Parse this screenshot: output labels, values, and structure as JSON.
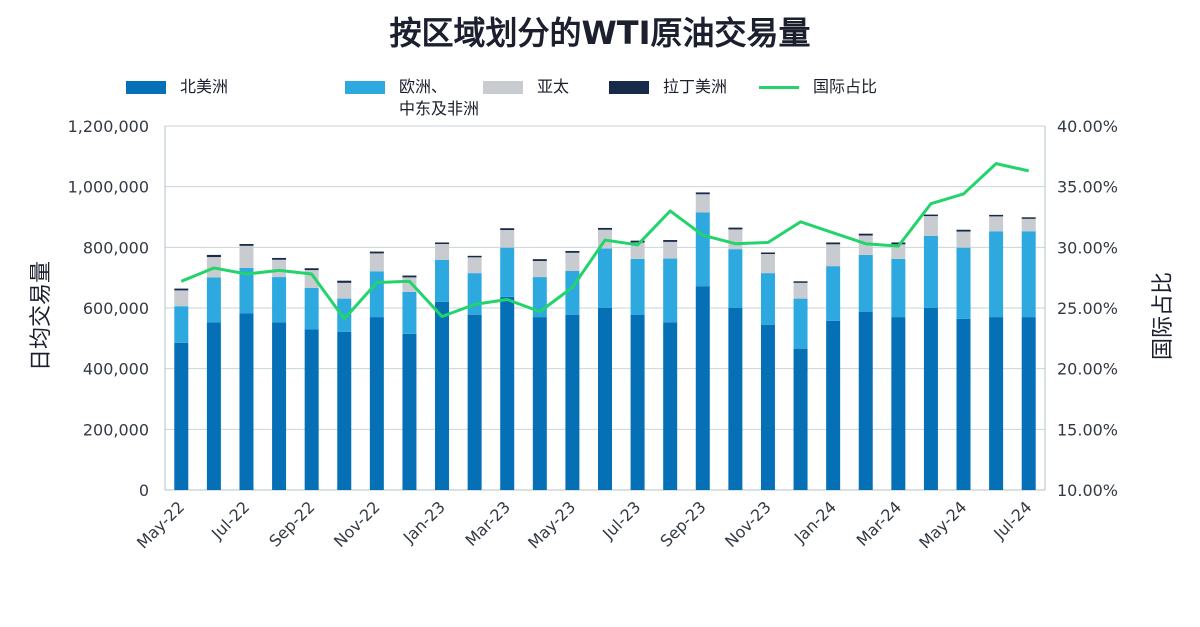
{
  "title": "按区域划分的WTI原油交易量",
  "legend": [
    {
      "label": "北美洲",
      "type": "bar",
      "color": "#0570b6"
    },
    {
      "label": "欧洲、\n中东及非洲",
      "type": "bar",
      "color": "#2ea9e0"
    },
    {
      "label": "亚太",
      "type": "bar",
      "color": "#c8ccd0"
    },
    {
      "label": "拉丁美洲",
      "type": "bar",
      "color": "#182a4a"
    },
    {
      "label": "国际占比",
      "type": "line",
      "color": "#22d46b"
    }
  ],
  "chart_data": {
    "type": "bar",
    "stacked": true,
    "title": "按区域划分的WTI原油交易量",
    "ylabel": "日均交易量",
    "y2label": "国际占比",
    "ylim": [
      0,
      1200000
    ],
    "y2lim": [
      0.1,
      0.4
    ],
    "yticks": [
      "0",
      "200,000",
      "400,000",
      "600,000",
      "800,000",
      "1,000,000",
      "1,200,000"
    ],
    "y2ticks": [
      "10.00%",
      "15.00%",
      "20.00%",
      "25.00%",
      "30.00%",
      "35.00%",
      "40.00%"
    ],
    "categories": [
      "May-22",
      "Jun-22",
      "Jul-22",
      "Aug-22",
      "Sep-22",
      "Oct-22",
      "Nov-22",
      "Dec-22",
      "Jan-23",
      "Feb-23",
      "Mar-23",
      "Apr-23",
      "May-23",
      "Jun-23",
      "Jul-23",
      "Aug-23",
      "Sep-23",
      "Oct-23",
      "Nov-23",
      "Dec-23",
      "Jan-24",
      "Feb-24",
      "Mar-24",
      "Apr-24",
      "May-24",
      "Jun-24",
      "Jul-24"
    ],
    "xtick_labels": [
      "May-22",
      "Jul-22",
      "Sep-22",
      "Nov-22",
      "Jan-23",
      "Mar-23",
      "May-23",
      "Jul-23",
      "Sep-23",
      "Nov-23",
      "Jan-24",
      "Mar-24",
      "May-24",
      "Jul-24"
    ],
    "grid": true,
    "legend_position": "top",
    "series": [
      {
        "name": "北美洲",
        "color": "#0570b6",
        "values": [
          485000,
          553000,
          582000,
          553000,
          529000,
          521000,
          570000,
          515000,
          620000,
          578000,
          637000,
          570000,
          578000,
          600000,
          577000,
          553000,
          672000,
          600000,
          545000,
          466000,
          558000,
          588000,
          570000,
          600000,
          564000,
          570000,
          570000
        ]
      },
      {
        "name": "欧洲、\n中东及非洲",
        "color": "#2ea9e0",
        "values": [
          121000,
          148000,
          150000,
          149000,
          137000,
          110000,
          151000,
          138000,
          139000,
          137000,
          162000,
          132000,
          144000,
          196000,
          185000,
          210000,
          243000,
          194000,
          170000,
          165000,
          180000,
          187000,
          192000,
          238000,
          235000,
          283000,
          283000
        ]
      },
      {
        "name": "亚太",
        "color": "#c8ccd0",
        "values": [
          52000,
          67000,
          73000,
          57000,
          59000,
          52000,
          59000,
          48000,
          52000,
          52000,
          58000,
          53000,
          60000,
          62000,
          54000,
          55000,
          60000,
          65000,
          63000,
          52000,
          72000,
          64000,
          48000,
          65000,
          53000,
          49000,
          41000
        ]
      },
      {
        "name": "拉丁美洲",
        "color": "#182a4a",
        "values": [
          6000,
          7000,
          6000,
          6000,
          6000,
          7000,
          6000,
          6000,
          5000,
          5000,
          6000,
          6000,
          6000,
          6000,
          6000,
          6000,
          6000,
          6000,
          5000,
          5000,
          6000,
          6000,
          6000,
          5000,
          6000,
          5000,
          5000
        ]
      },
      {
        "name": "国际占比",
        "type": "line",
        "axis": "right",
        "color": "#22d46b",
        "values": [
          0.272,
          0.283,
          0.278,
          0.281,
          0.278,
          0.241,
          0.271,
          0.272,
          0.243,
          0.253,
          0.257,
          0.247,
          0.267,
          0.306,
          0.302,
          0.33,
          0.31,
          0.303,
          0.304,
          0.321,
          0.312,
          0.303,
          0.301,
          0.336,
          0.344,
          0.369,
          0.363
        ]
      }
    ]
  }
}
